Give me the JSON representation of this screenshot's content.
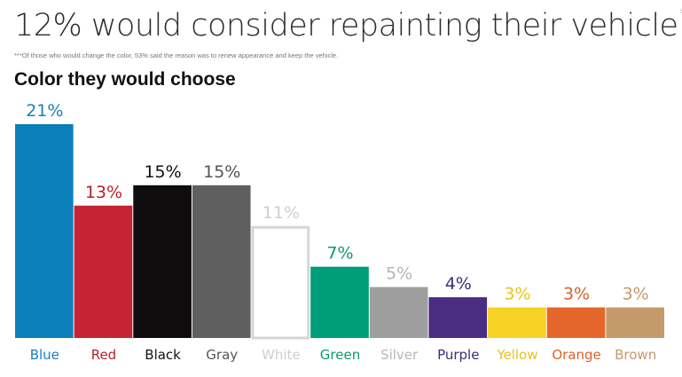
{
  "header": {
    "title": "12% would consider repainting their vehicle",
    "title_marker": "***",
    "footnote": "***Of those who would change the color, 53% said the reason was to renew appearance and keep the vehicle."
  },
  "chart_data": {
    "type": "bar",
    "title": "Color they would choose",
    "categories": [
      "Blue",
      "Red",
      "Black",
      "Gray",
      "White",
      "Green",
      "Silver",
      "Purple",
      "Yellow",
      "Orange",
      "Brown"
    ],
    "values": [
      21,
      13,
      15,
      15,
      11,
      7,
      5,
      4,
      3,
      3,
      3
    ],
    "value_labels": [
      "21%",
      "13%",
      "15%",
      "15%",
      "11%",
      "7%",
      "5%",
      "4%",
      "3%",
      "3%",
      "3%"
    ],
    "bar_colors": [
      "#0a7fba",
      "#c42434",
      "#0f0d0d",
      "#5f5f5f",
      "#ffffff",
      "#009e78",
      "#9e9e9e",
      "#4a2c82",
      "#f5d223",
      "#e4662a",
      "#c49a6a"
    ],
    "label_colors": [
      "#1a7fb5",
      "#b9202e",
      "#111111",
      "#555555",
      "#cfcfcf",
      "#0a9a70",
      "#b5b5b5",
      "#3d2a78",
      "#e9c21c",
      "#e0602a",
      "#c4996a"
    ],
    "white_bar_stroke": "#d6d6d6",
    "ylim": [
      0,
      21
    ],
    "grid": false,
    "legend": "none"
  }
}
